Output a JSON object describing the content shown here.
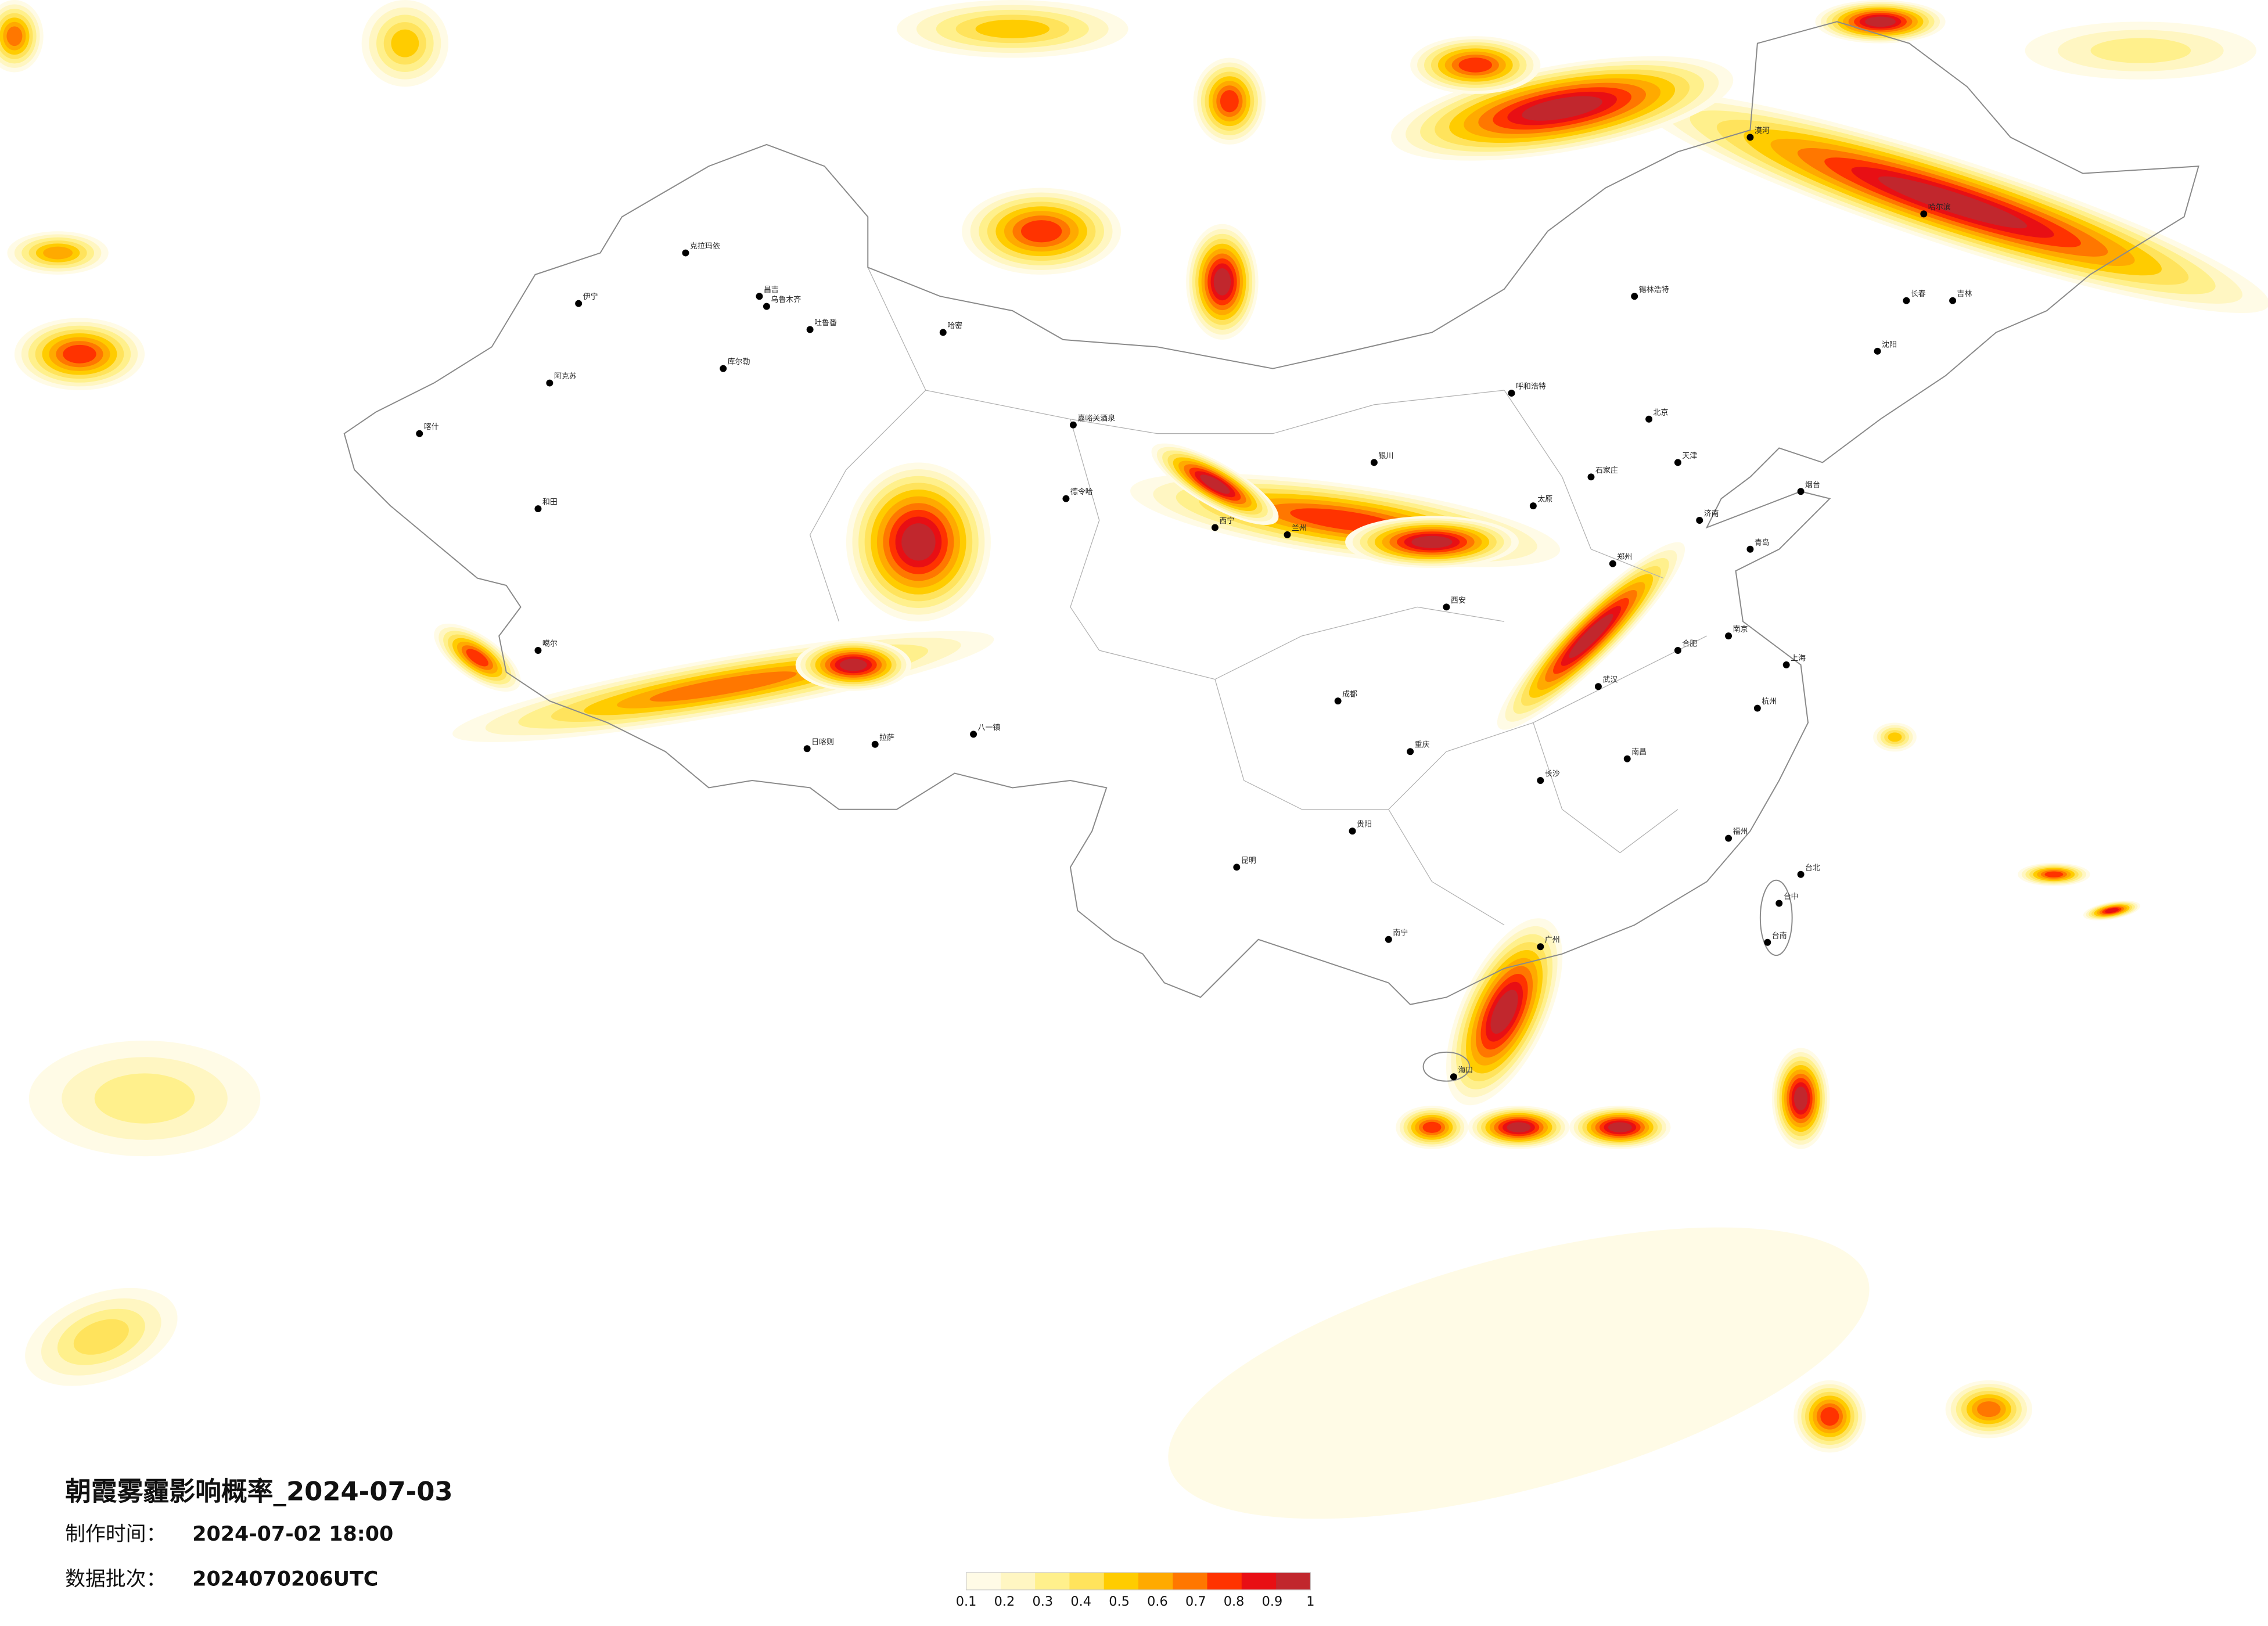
{
  "title": "朝霞雾霾影响概率_2024-07-03",
  "made_label": "制作时间：",
  "made_time": "2024-07-02 18:00",
  "batch_label": "数据批次：",
  "batch": "2024070206UTC",
  "legend": {
    "colors": [
      "#fffbe6",
      "#fff6c2",
      "#fff08c",
      "#ffe35c",
      "#ffcc00",
      "#ffaa00",
      "#ff7700",
      "#ff3300",
      "#e80f14",
      "#c1272d"
    ],
    "ticks": [
      0.1,
      0.2,
      0.3,
      0.4,
      0.5,
      0.6,
      0.7,
      0.8,
      0.9,
      1
    ]
  },
  "cities": [
    "克拉玛依",
    "昌吉",
    "乌鲁木齐",
    "吐鲁番",
    "哈密",
    "伊宁",
    "阿克苏",
    "库尔勒",
    "喀什",
    "和田",
    "嘉峪关酒泉",
    "德令哈",
    "噶尔",
    "日喀则",
    "拉萨",
    "八一镇",
    "漠河",
    "哈尔滨",
    "长春",
    "吉林",
    "沈阳",
    "呼和浩特",
    "北京",
    "天津",
    "石家庄",
    "太原",
    "济南",
    "郑州",
    "西安",
    "银川",
    "兰州",
    "西宁",
    "成都",
    "重庆",
    "武汉",
    "南京",
    "上海",
    "杭州",
    "合肥",
    "长沙",
    "南昌",
    "福州",
    "贵阳",
    "昆明",
    "南宁",
    "广州",
    "海口",
    "台北",
    "台中",
    "台南",
    "锡林浩特",
    "烟台",
    "青岛"
  ]
}
